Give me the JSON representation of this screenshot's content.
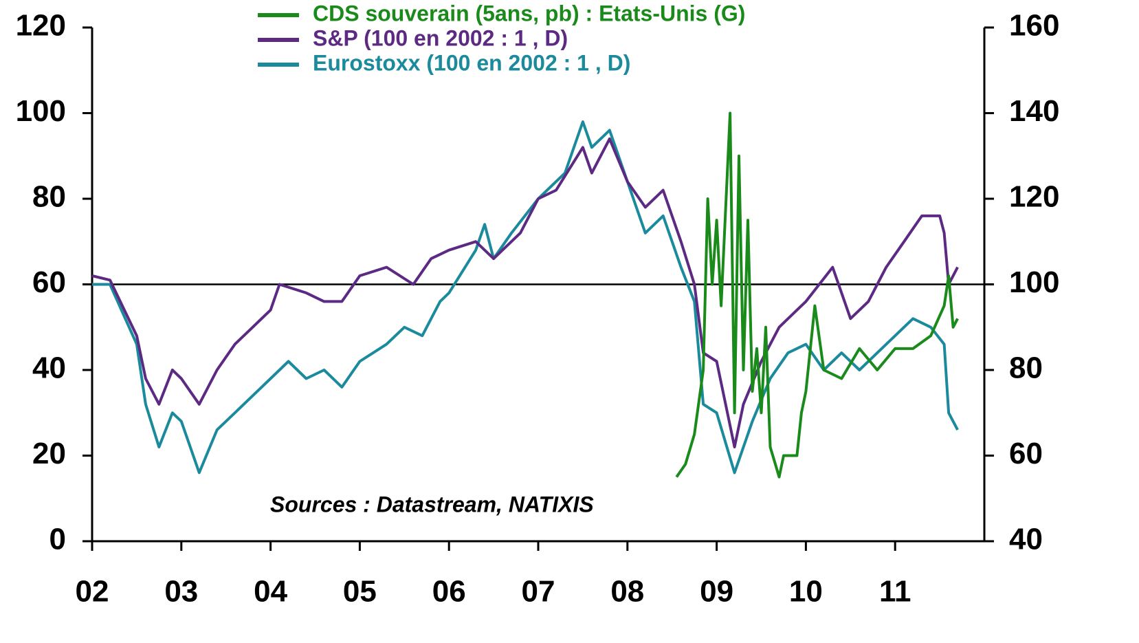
{
  "chart_data": {
    "type": "line",
    "xlim": [
      2002,
      2012
    ],
    "xticks": [
      {
        "value": 2002,
        "label": "02"
      },
      {
        "value": 2003,
        "label": "03"
      },
      {
        "value": 2004,
        "label": "04"
      },
      {
        "value": 2005,
        "label": "05"
      },
      {
        "value": 2006,
        "label": "06"
      },
      {
        "value": 2007,
        "label": "07"
      },
      {
        "value": 2008,
        "label": "08"
      },
      {
        "value": 2009,
        "label": "09"
      },
      {
        "value": 2010,
        "label": "10"
      },
      {
        "value": 2011,
        "label": "11"
      }
    ],
    "ylim": [
      0,
      120
    ],
    "yticks": [
      0,
      20,
      40,
      60,
      80,
      100,
      120
    ],
    "y2lim": [
      40,
      160
    ],
    "y2ticks": [
      40,
      60,
      80,
      100,
      120,
      140,
      160
    ],
    "reference_line": {
      "axis": "y2",
      "value": 100
    },
    "annotation": "Sources : Datastream, NATIXIS",
    "series": [
      {
        "name": "CDS souverain (5ans, pb) : Etats-Unis (G)",
        "color": "#1a8a1a",
        "axis": "y",
        "x": [
          2008.55,
          2008.65,
          2008.75,
          2008.85,
          2008.9,
          2008.95,
          2009.0,
          2009.05,
          2009.15,
          2009.2,
          2009.25,
          2009.3,
          2009.35,
          2009.4,
          2009.45,
          2009.5,
          2009.55,
          2009.6,
          2009.7,
          2009.75,
          2009.9,
          2009.95,
          2010.0,
          2010.1,
          2010.2,
          2010.4,
          2010.6,
          2010.8,
          2011.0,
          2011.2,
          2011.4,
          2011.55,
          2011.6,
          2011.65,
          2011.7
        ],
        "values": [
          15,
          18,
          25,
          40,
          80,
          60,
          75,
          55,
          100,
          30,
          90,
          40,
          75,
          35,
          45,
          30,
          50,
          22,
          15,
          20,
          20,
          30,
          35,
          55,
          40,
          38,
          45,
          40,
          45,
          45,
          48,
          55,
          62,
          50,
          52
        ]
      },
      {
        "name": "S&P (100 en 2002 : 1 , D)",
        "color": "#5c2a82",
        "axis": "y2",
        "x": [
          2002.0,
          2002.2,
          2002.5,
          2002.6,
          2002.75,
          2002.9,
          2003.0,
          2003.2,
          2003.4,
          2003.6,
          2003.8,
          2004.0,
          2004.1,
          2004.4,
          2004.6,
          2004.8,
          2005.0,
          2005.3,
          2005.6,
          2005.8,
          2006.0,
          2006.3,
          2006.5,
          2006.8,
          2007.0,
          2007.2,
          2007.5,
          2007.6,
          2007.8,
          2008.0,
          2008.2,
          2008.4,
          2008.6,
          2008.75,
          2008.85,
          2009.0,
          2009.2,
          2009.3,
          2009.5,
          2009.7,
          2009.9,
          2010.0,
          2010.3,
          2010.5,
          2010.7,
          2010.9,
          2011.1,
          2011.3,
          2011.5,
          2011.55,
          2011.6,
          2011.7
        ],
        "values": [
          102,
          101,
          88,
          78,
          72,
          80,
          78,
          72,
          80,
          86,
          90,
          94,
          100,
          98,
          96,
          96,
          102,
          104,
          100,
          106,
          108,
          110,
          106,
          112,
          120,
          122,
          132,
          126,
          134,
          124,
          118,
          122,
          110,
          100,
          84,
          82,
          62,
          72,
          82,
          90,
          94,
          96,
          104,
          92,
          96,
          104,
          110,
          116,
          116,
          112,
          100,
          104
        ]
      },
      {
        "name": "Eurostoxx (100 en 2002 : 1 , D)",
        "color": "#1a8a9c",
        "axis": "y2",
        "x": [
          2002.0,
          2002.2,
          2002.5,
          2002.6,
          2002.75,
          2002.9,
          2003.0,
          2003.2,
          2003.4,
          2003.6,
          2003.8,
          2004.0,
          2004.2,
          2004.4,
          2004.6,
          2004.8,
          2005.0,
          2005.3,
          2005.5,
          2005.7,
          2005.9,
          2006.0,
          2006.3,
          2006.4,
          2006.5,
          2006.7,
          2007.0,
          2007.3,
          2007.5,
          2007.6,
          2007.8,
          2008.0,
          2008.2,
          2008.4,
          2008.6,
          2008.75,
          2008.85,
          2009.0,
          2009.2,
          2009.4,
          2009.6,
          2009.8,
          2010.0,
          2010.2,
          2010.4,
          2010.6,
          2010.8,
          2011.0,
          2011.2,
          2011.4,
          2011.55,
          2011.6,
          2011.7
        ],
        "values": [
          100,
          100,
          86,
          72,
          62,
          70,
          68,
          56,
          66,
          70,
          74,
          78,
          82,
          78,
          80,
          76,
          82,
          86,
          90,
          88,
          96,
          98,
          108,
          114,
          106,
          112,
          120,
          126,
          138,
          132,
          136,
          124,
          112,
          116,
          104,
          96,
          72,
          70,
          56,
          68,
          78,
          84,
          86,
          80,
          84,
          80,
          84,
          88,
          92,
          90,
          86,
          70,
          66
        ]
      }
    ]
  }
}
